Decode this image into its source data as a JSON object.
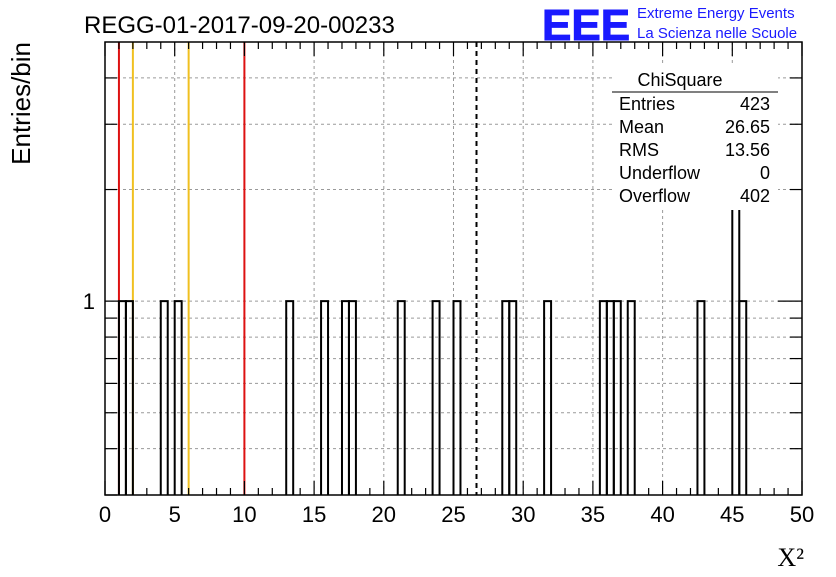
{
  "chart_data": {
    "type": "bar",
    "title": "REGG-01-2017-09-20-00233",
    "xlabel": "X²",
    "ylabel": "Entries/bin",
    "xlim": [
      0,
      50
    ],
    "ylim": [
      0.3,
      5
    ],
    "y_scale": "log",
    "bin_width": 0.5,
    "grid": true,
    "x_ticks": [
      0,
      5,
      10,
      15,
      20,
      25,
      30,
      35,
      40,
      45,
      50
    ],
    "y_ticks": [
      1
    ],
    "bins": [
      {
        "x": 1.0,
        "y": 1
      },
      {
        "x": 1.5,
        "y": 1
      },
      {
        "x": 4.0,
        "y": 1
      },
      {
        "x": 5.0,
        "y": 1
      },
      {
        "x": 13.0,
        "y": 1
      },
      {
        "x": 15.5,
        "y": 1
      },
      {
        "x": 17.0,
        "y": 1
      },
      {
        "x": 17.5,
        "y": 1
      },
      {
        "x": 21.0,
        "y": 1
      },
      {
        "x": 23.5,
        "y": 1
      },
      {
        "x": 25.0,
        "y": 1
      },
      {
        "x": 28.5,
        "y": 1
      },
      {
        "x": 29.0,
        "y": 1
      },
      {
        "x": 31.5,
        "y": 1
      },
      {
        "x": 35.5,
        "y": 1
      },
      {
        "x": 36.0,
        "y": 1
      },
      {
        "x": 36.5,
        "y": 1
      },
      {
        "x": 37.5,
        "y": 1
      },
      {
        "x": 42.5,
        "y": 1
      },
      {
        "x": 45.0,
        "y": 2
      },
      {
        "x": 45.5,
        "y": 1
      }
    ],
    "vertical_lines": [
      {
        "x": 1.0,
        "color": "#dd1111",
        "style": "solid"
      },
      {
        "x": 2.0,
        "color": "#f0c020",
        "style": "solid"
      },
      {
        "x": 6.0,
        "color": "#f0c020",
        "style": "solid"
      },
      {
        "x": 10.0,
        "color": "#dd1111",
        "style": "solid"
      },
      {
        "x": 26.65,
        "color": "#000000",
        "style": "dashed"
      }
    ],
    "stats_box": {
      "title": "ChiSquare",
      "rows": [
        {
          "label": "Entries",
          "value": "423"
        },
        {
          "label": "Mean",
          "value": "26.65"
        },
        {
          "label": "RMS",
          "value": "13.56"
        },
        {
          "label": "Underflow",
          "value": "0"
        },
        {
          "label": "Overflow",
          "value": "402"
        }
      ]
    }
  },
  "logo": {
    "text": "EEE",
    "line1": "Extreme Energy Events",
    "line2": "La Scienza nelle Scuole",
    "color": "#1a1aff"
  }
}
